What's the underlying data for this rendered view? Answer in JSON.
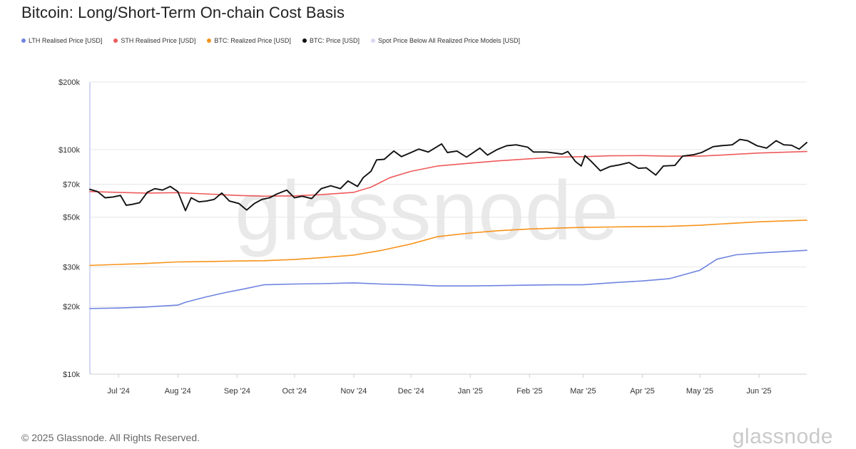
{
  "title": "Bitcoin: Long/Short-Term On-chain Cost Basis",
  "legend": [
    {
      "label": "LTH Realised Price [USD]",
      "color": "#6f84e0"
    },
    {
      "label": "STH Realised Price [USD]",
      "color": "#ef5a5a"
    },
    {
      "label": "BTC: Realized Price [USD]",
      "color": "#f7931a"
    },
    {
      "label": "BTC: Price [USD]",
      "color": "#111111"
    },
    {
      "label": "Spot Price Below All Realized Price Models [USD]",
      "color": "#ddd6f3"
    }
  ],
  "watermark": "glassnode",
  "footer": "© 2025 Glassnode. All Rights Reserved.",
  "brand": "glassnode",
  "chart_data": {
    "type": "line",
    "yscale": "log",
    "ylim": [
      10000,
      200000
    ],
    "xlim": [
      "2024-06-16",
      "2025-06-26"
    ],
    "grid": true,
    "legend_position": "top-left",
    "y_ticks": [
      {
        "value": 10000,
        "label": "$10k"
      },
      {
        "value": 20000,
        "label": "$20k"
      },
      {
        "value": 30000,
        "label": "$30k"
      },
      {
        "value": 50000,
        "label": "$50k"
      },
      {
        "value": 70000,
        "label": "$70k"
      },
      {
        "value": 100000,
        "label": "$100k"
      },
      {
        "value": 200000,
        "label": "$200k"
      }
    ],
    "x_ticks": [
      {
        "value": "2024-07-01",
        "label": "Jul '24"
      },
      {
        "value": "2024-08-01",
        "label": "Aug '24"
      },
      {
        "value": "2024-09-01",
        "label": "Sep '24"
      },
      {
        "value": "2024-10-01",
        "label": "Oct '24"
      },
      {
        "value": "2024-11-01",
        "label": "Nov '24"
      },
      {
        "value": "2024-12-01",
        "label": "Dec '24"
      },
      {
        "value": "2025-01-01",
        "label": "Jan '25"
      },
      {
        "value": "2025-02-01",
        "label": "Feb '25"
      },
      {
        "value": "2025-03-01",
        "label": "Mar '25"
      },
      {
        "value": "2025-04-01",
        "label": "Apr '25"
      },
      {
        "value": "2025-05-01",
        "label": "May '25"
      },
      {
        "value": "2025-06-01",
        "label": "Jun '25"
      }
    ],
    "series": [
      {
        "name": "LTH Realised Price [USD]",
        "color": "#6f84e0",
        "points": [
          [
            "2024-06-16",
            19600
          ],
          [
            "2024-07-01",
            19700
          ],
          [
            "2024-07-15",
            19900
          ],
          [
            "2024-08-01",
            20300
          ],
          [
            "2024-08-05",
            20900
          ],
          [
            "2024-08-15",
            22000
          ],
          [
            "2024-08-25",
            23000
          ],
          [
            "2024-09-05",
            24000
          ],
          [
            "2024-09-15",
            25000
          ],
          [
            "2024-10-01",
            25200
          ],
          [
            "2024-10-15",
            25300
          ],
          [
            "2024-11-01",
            25500
          ],
          [
            "2024-11-15",
            25200
          ],
          [
            "2024-12-01",
            25000
          ],
          [
            "2024-12-15",
            24700
          ],
          [
            "2025-01-01",
            24700
          ],
          [
            "2025-01-15",
            24800
          ],
          [
            "2025-02-01",
            24900
          ],
          [
            "2025-02-15",
            25000
          ],
          [
            "2025-03-01",
            25000
          ],
          [
            "2025-03-15",
            25500
          ],
          [
            "2025-04-01",
            26000
          ],
          [
            "2025-04-15",
            26600
          ],
          [
            "2025-05-01",
            29000
          ],
          [
            "2025-05-10",
            32500
          ],
          [
            "2025-05-20",
            34000
          ],
          [
            "2025-06-01",
            34600
          ],
          [
            "2025-06-26",
            35600
          ]
        ]
      },
      {
        "name": "STH Realised Price [USD]",
        "color": "#ef5a5a",
        "points": [
          [
            "2024-06-16",
            65000
          ],
          [
            "2024-07-01",
            64500
          ],
          [
            "2024-07-15",
            64000
          ],
          [
            "2024-08-01",
            64300
          ],
          [
            "2024-08-15",
            63500
          ],
          [
            "2024-09-01",
            62500
          ],
          [
            "2024-09-15",
            62000
          ],
          [
            "2024-10-01",
            62200
          ],
          [
            "2024-10-15",
            63000
          ],
          [
            "2024-11-01",
            64500
          ],
          [
            "2024-11-10",
            68000
          ],
          [
            "2024-11-20",
            75000
          ],
          [
            "2024-12-01",
            80000
          ],
          [
            "2024-12-15",
            84500
          ],
          [
            "2025-01-01",
            87000
          ],
          [
            "2025-01-15",
            89000
          ],
          [
            "2025-02-01",
            91000
          ],
          [
            "2025-02-15",
            92500
          ],
          [
            "2025-03-01",
            93000
          ],
          [
            "2025-03-15",
            93800
          ],
          [
            "2025-04-01",
            94000
          ],
          [
            "2025-04-15",
            93500
          ],
          [
            "2025-05-01",
            93500
          ],
          [
            "2025-05-15",
            94800
          ],
          [
            "2025-06-01",
            96500
          ],
          [
            "2025-06-26",
            98000
          ]
        ]
      },
      {
        "name": "BTC: Realized Price [USD]",
        "color": "#f7931a",
        "points": [
          [
            "2024-06-16",
            30500
          ],
          [
            "2024-07-01",
            30800
          ],
          [
            "2024-07-15",
            31100
          ],
          [
            "2024-08-01",
            31600
          ],
          [
            "2024-08-15",
            31700
          ],
          [
            "2024-09-01",
            31900
          ],
          [
            "2024-09-15",
            32000
          ],
          [
            "2024-10-01",
            32400
          ],
          [
            "2024-10-15",
            33000
          ],
          [
            "2024-11-01",
            33900
          ],
          [
            "2024-11-15",
            35500
          ],
          [
            "2024-12-01",
            38000
          ],
          [
            "2024-12-15",
            41000
          ],
          [
            "2025-01-01",
            42500
          ],
          [
            "2025-01-15",
            43500
          ],
          [
            "2025-02-01",
            44300
          ],
          [
            "2025-02-15",
            44700
          ],
          [
            "2025-03-01",
            45000
          ],
          [
            "2025-03-15",
            45200
          ],
          [
            "2025-04-01",
            45400
          ],
          [
            "2025-04-15",
            45500
          ],
          [
            "2025-05-01",
            46000
          ],
          [
            "2025-05-15",
            46800
          ],
          [
            "2025-06-01",
            47700
          ],
          [
            "2025-06-26",
            48500
          ]
        ]
      },
      {
        "name": "BTC: Price [USD]",
        "color": "#111111",
        "points": [
          [
            "2024-06-16",
            66500
          ],
          [
            "2024-06-20",
            65000
          ],
          [
            "2024-06-24",
            61000
          ],
          [
            "2024-06-28",
            61500
          ],
          [
            "2024-07-02",
            62500
          ],
          [
            "2024-07-05",
            56500
          ],
          [
            "2024-07-08",
            57000
          ],
          [
            "2024-07-12",
            58000
          ],
          [
            "2024-07-16",
            64500
          ],
          [
            "2024-07-20",
            67000
          ],
          [
            "2024-07-24",
            66000
          ],
          [
            "2024-07-28",
            68500
          ],
          [
            "2024-08-01",
            65000
          ],
          [
            "2024-08-05",
            53500
          ],
          [
            "2024-08-08",
            61000
          ],
          [
            "2024-08-12",
            58500
          ],
          [
            "2024-08-16",
            59000
          ],
          [
            "2024-08-20",
            60000
          ],
          [
            "2024-08-24",
            64000
          ],
          [
            "2024-08-28",
            59000
          ],
          [
            "2024-09-02",
            57500
          ],
          [
            "2024-09-06",
            53800
          ],
          [
            "2024-09-10",
            57500
          ],
          [
            "2024-09-14",
            60000
          ],
          [
            "2024-09-18",
            61000
          ],
          [
            "2024-09-22",
            63500
          ],
          [
            "2024-09-27",
            66000
          ],
          [
            "2024-10-01",
            61000
          ],
          [
            "2024-10-05",
            62000
          ],
          [
            "2024-10-10",
            60500
          ],
          [
            "2024-10-15",
            67000
          ],
          [
            "2024-10-20",
            69000
          ],
          [
            "2024-10-25",
            67000
          ],
          [
            "2024-10-29",
            72500
          ],
          [
            "2024-11-03",
            68500
          ],
          [
            "2024-11-06",
            75000
          ],
          [
            "2024-11-10",
            80000
          ],
          [
            "2024-11-13",
            90000
          ],
          [
            "2024-11-17",
            90500
          ],
          [
            "2024-11-22",
            98500
          ],
          [
            "2024-11-26",
            93000
          ],
          [
            "2024-12-01",
            97000
          ],
          [
            "2024-12-05",
            100500
          ],
          [
            "2024-12-10",
            97500
          ],
          [
            "2024-12-17",
            106000
          ],
          [
            "2024-12-20",
            97000
          ],
          [
            "2024-12-25",
            98500
          ],
          [
            "2024-12-30",
            92500
          ],
          [
            "2025-01-06",
            101500
          ],
          [
            "2025-01-10",
            94500
          ],
          [
            "2025-01-15",
            100000
          ],
          [
            "2025-01-20",
            104000
          ],
          [
            "2025-01-25",
            105000
          ],
          [
            "2025-01-31",
            102500
          ],
          [
            "2025-02-03",
            97500
          ],
          [
            "2025-02-10",
            97500
          ],
          [
            "2025-02-18",
            95500
          ],
          [
            "2025-02-21",
            98000
          ],
          [
            "2025-02-25",
            88500
          ],
          [
            "2025-02-28",
            84500
          ],
          [
            "2025-03-02",
            94000
          ],
          [
            "2025-03-05",
            89000
          ],
          [
            "2025-03-10",
            80500
          ],
          [
            "2025-03-15",
            84000
          ],
          [
            "2025-03-20",
            85500
          ],
          [
            "2025-03-25",
            87500
          ],
          [
            "2025-03-30",
            82500
          ],
          [
            "2025-04-03",
            83000
          ],
          [
            "2025-04-08",
            77000
          ],
          [
            "2025-04-12",
            84500
          ],
          [
            "2025-04-18",
            85000
          ],
          [
            "2025-04-22",
            93500
          ],
          [
            "2025-04-28",
            95000
          ],
          [
            "2025-05-02",
            97000
          ],
          [
            "2025-05-08",
            103000
          ],
          [
            "2025-05-12",
            104000
          ],
          [
            "2025-05-18",
            105000
          ],
          [
            "2025-05-22",
            111000
          ],
          [
            "2025-05-26",
            109500
          ],
          [
            "2025-05-31",
            104000
          ],
          [
            "2025-06-05",
            101500
          ],
          [
            "2025-06-10",
            109500
          ],
          [
            "2025-06-14",
            105000
          ],
          [
            "2025-06-18",
            104500
          ],
          [
            "2025-06-22",
            100500
          ],
          [
            "2025-06-26",
            107500
          ]
        ]
      }
    ]
  }
}
